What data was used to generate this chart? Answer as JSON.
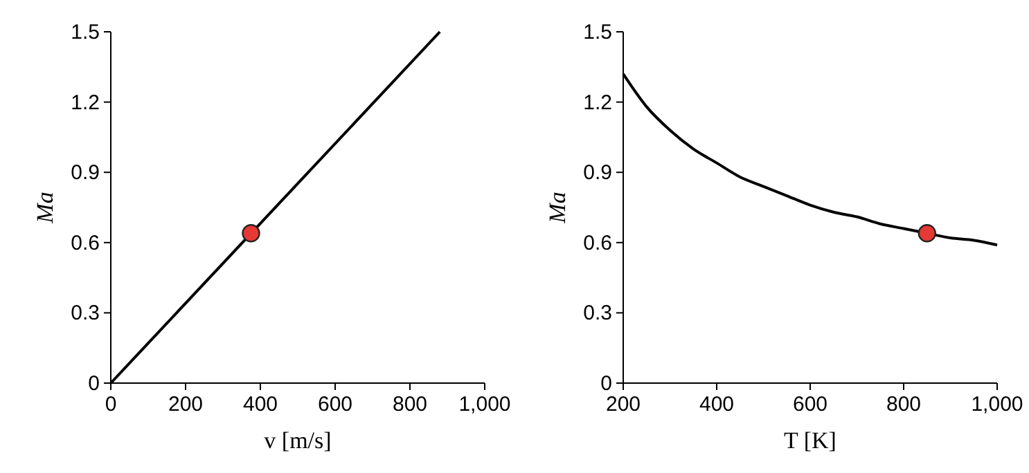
{
  "chart_data": [
    {
      "type": "line",
      "xlabel": "v [m/s]",
      "ylabel": "Ma",
      "xlim": [
        0,
        1000
      ],
      "ylim": [
        0,
        1.5
      ],
      "xticks": [
        0,
        200,
        400,
        600,
        800,
        {
          "value": 1000,
          "label": "1,000"
        }
      ],
      "yticks": [
        0,
        0.3,
        0.6,
        0.9,
        1.2,
        1.5
      ],
      "grid": false,
      "series": [
        {
          "color": "#000000",
          "marker": "none",
          "x": [
            0,
            880
          ],
          "values": [
            0,
            1.5
          ]
        },
        {
          "type": "scatter",
          "color": "#e53935",
          "marker": "circle",
          "x": [
            375
          ],
          "values": [
            0.64
          ]
        }
      ]
    },
    {
      "type": "line",
      "xlabel": "T [K]",
      "ylabel": "Ma",
      "xlim": [
        200,
        1000
      ],
      "ylim": [
        0,
        1.5
      ],
      "xticks": [
        200,
        400,
        600,
        800,
        {
          "value": 1000,
          "label": "1,000"
        }
      ],
      "yticks": [
        0,
        0.3,
        0.6,
        0.9,
        1.2,
        1.5
      ],
      "grid": false,
      "series": [
        {
          "color": "#000000",
          "marker": "none",
          "x": [
            200,
            250,
            300,
            350,
            400,
            450,
            500,
            550,
            600,
            650,
            700,
            750,
            800,
            850,
            900,
            950,
            1000
          ],
          "values": [
            1.32,
            1.18,
            1.08,
            1.0,
            0.94,
            0.88,
            0.84,
            0.8,
            0.76,
            0.73,
            0.71,
            0.68,
            0.66,
            0.64,
            0.62,
            0.61,
            0.59
          ]
        },
        {
          "type": "scatter",
          "color": "#e53935",
          "marker": "circle",
          "x": [
            850
          ],
          "values": [
            0.64
          ]
        }
      ]
    }
  ]
}
